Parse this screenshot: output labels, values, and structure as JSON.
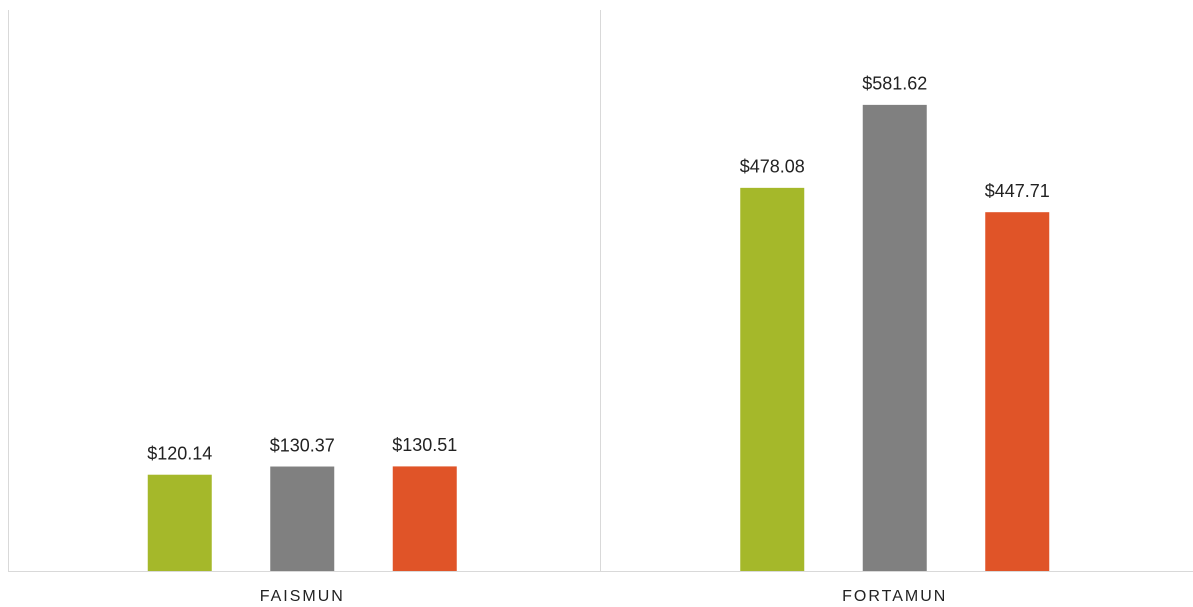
{
  "chart_data": {
    "type": "bar",
    "categories": [
      "FAISMUN",
      "FORTAMUN"
    ],
    "series": [
      {
        "color": "#a5b82a",
        "values": [
          120.14,
          478.08
        ],
        "value_labels": [
          "$120.14",
          "$478.08"
        ]
      },
      {
        "color": "#808080",
        "values": [
          130.37,
          581.62
        ],
        "value_labels": [
          "$130.37",
          "$581.62"
        ]
      },
      {
        "color": "#e05428",
        "values": [
          130.51,
          447.71
        ],
        "value_labels": [
          "$130.51",
          "$447.71"
        ]
      }
    ],
    "ylim": [
      0,
      700
    ]
  }
}
